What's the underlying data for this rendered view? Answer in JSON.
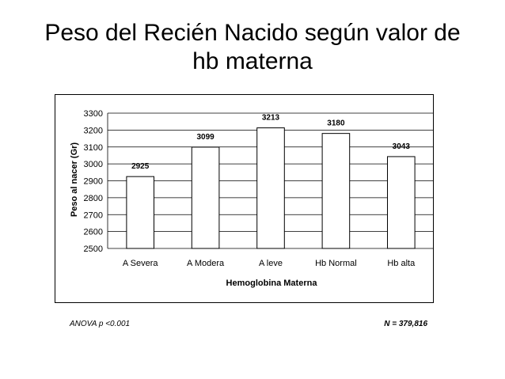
{
  "slide": {
    "title_line1": "Peso del Recién Nacido según valor de",
    "title_line2": "hb materna",
    "footnote_left": "ANOVA p <0.001",
    "footnote_right": "N = 379,816"
  },
  "chart_data": {
    "type": "bar",
    "categories": [
      "A Severa",
      "A Modera",
      "A leve",
      "Hb Normal",
      "Hb alta"
    ],
    "values": [
      2925,
      3099,
      3213,
      3180,
      3043
    ],
    "data_labels": [
      "2925",
      "3099",
      "3213",
      "3180",
      "3043"
    ],
    "xlabel": "Hemoglobina Materna",
    "ylabel": "Peso al nacer (Gr)",
    "ylim": [
      2500,
      3300
    ],
    "yticks": [
      2500,
      2600,
      2700,
      2800,
      2900,
      3000,
      3100,
      3200,
      3300
    ],
    "grid": true,
    "legend": "none",
    "bar_fill": "#ffffff",
    "bar_stroke": "#000000"
  }
}
